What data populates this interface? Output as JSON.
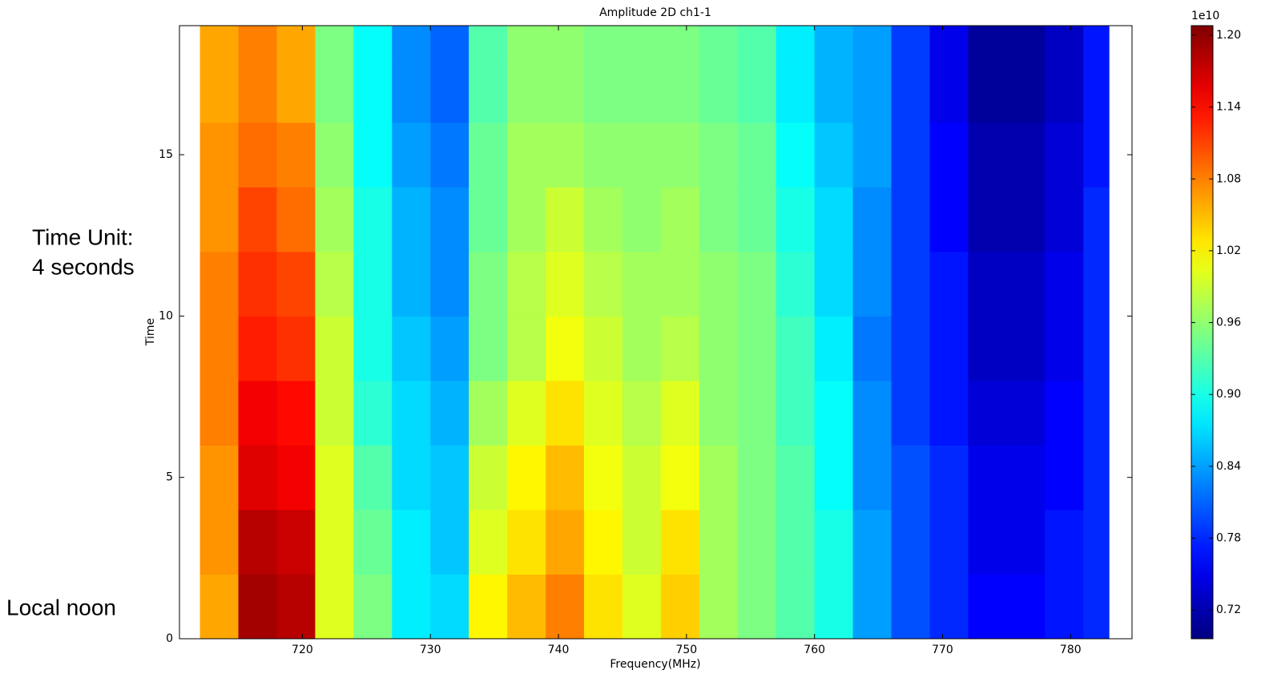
{
  "chart_data": {
    "type": "heatmap",
    "title": "Amplitude 2D ch1-1",
    "x_label": "Frequency(MHz)",
    "y_label": "Time",
    "colorbar_offset": "1e10",
    "annotations": [
      "Time Unit:",
      "4 seconds",
      "Local noon"
    ],
    "colormap": "jet",
    "x_edges": [
      712,
      715,
      718,
      721,
      724,
      727,
      730,
      733,
      736,
      739,
      742,
      745,
      748,
      751,
      754,
      757,
      760,
      763,
      766,
      769,
      772,
      775,
      778,
      781,
      783
    ],
    "y_edges": [
      0,
      2,
      4,
      6,
      8,
      10,
      12,
      14,
      16,
      18,
      19
    ],
    "z": [
      [
        1.06,
        1.19,
        1.18,
        1.0,
        0.95,
        0.88,
        0.87,
        1.02,
        1.05,
        1.08,
        1.03,
        1.0,
        1.04,
        0.97,
        0.95,
        0.93,
        0.9,
        0.84,
        0.8,
        0.78,
        0.76,
        0.76,
        0.77,
        0.78
      ],
      [
        1.07,
        1.18,
        1.17,
        1.0,
        0.94,
        0.88,
        0.86,
        1.0,
        1.03,
        1.06,
        1.02,
        0.99,
        1.03,
        0.97,
        0.95,
        0.93,
        0.9,
        0.84,
        0.8,
        0.78,
        0.75,
        0.75,
        0.77,
        0.78
      ],
      [
        1.07,
        1.16,
        1.15,
        1.0,
        0.93,
        0.87,
        0.86,
        0.99,
        1.02,
        1.05,
        1.01,
        0.99,
        1.01,
        0.97,
        0.95,
        0.93,
        0.89,
        0.83,
        0.8,
        0.78,
        0.75,
        0.75,
        0.76,
        0.78
      ],
      [
        1.08,
        1.15,
        1.14,
        0.99,
        0.91,
        0.87,
        0.85,
        0.97,
        1.0,
        1.03,
        1.0,
        0.98,
        1.0,
        0.96,
        0.95,
        0.92,
        0.89,
        0.83,
        0.79,
        0.77,
        0.74,
        0.74,
        0.76,
        0.78
      ],
      [
        1.08,
        1.13,
        1.12,
        0.99,
        0.9,
        0.86,
        0.84,
        0.95,
        0.98,
        1.01,
        0.99,
        0.97,
        0.98,
        0.96,
        0.95,
        0.92,
        0.88,
        0.82,
        0.79,
        0.77,
        0.73,
        0.73,
        0.75,
        0.78
      ],
      [
        1.08,
        1.12,
        1.11,
        0.98,
        0.9,
        0.85,
        0.83,
        0.95,
        0.98,
        1.0,
        0.98,
        0.97,
        0.97,
        0.96,
        0.95,
        0.91,
        0.87,
        0.83,
        0.79,
        0.77,
        0.73,
        0.73,
        0.75,
        0.78
      ],
      [
        1.07,
        1.11,
        1.09,
        0.97,
        0.9,
        0.85,
        0.83,
        0.94,
        0.97,
        0.99,
        0.97,
        0.96,
        0.97,
        0.95,
        0.94,
        0.9,
        0.87,
        0.83,
        0.79,
        0.76,
        0.72,
        0.72,
        0.74,
        0.78
      ],
      [
        1.07,
        1.09,
        1.08,
        0.96,
        0.89,
        0.84,
        0.82,
        0.94,
        0.97,
        0.97,
        0.96,
        0.96,
        0.96,
        0.95,
        0.94,
        0.89,
        0.86,
        0.84,
        0.79,
        0.76,
        0.72,
        0.72,
        0.74,
        0.77
      ],
      [
        1.06,
        1.08,
        1.06,
        0.95,
        0.89,
        0.83,
        0.81,
        0.93,
        0.96,
        0.96,
        0.95,
        0.95,
        0.95,
        0.94,
        0.93,
        0.88,
        0.85,
        0.84,
        0.79,
        0.75,
        0.71,
        0.71,
        0.73,
        0.77
      ],
      [
        1.06,
        1.08,
        1.06,
        0.95,
        0.89,
        0.83,
        0.81,
        0.93,
        0.96,
        0.96,
        0.95,
        0.95,
        0.95,
        0.94,
        0.93,
        0.88,
        0.85,
        0.84,
        0.79,
        0.75,
        0.71,
        0.71,
        0.73,
        0.77
      ]
    ],
    "xlim": [
      710.4,
      784.8
    ],
    "ylim": [
      0,
      19
    ],
    "xticks": [
      720,
      730,
      740,
      750,
      760,
      770,
      780
    ],
    "yticks": [
      0,
      5,
      10,
      15
    ],
    "clim": [
      0.696,
      1.208
    ],
    "cticks": [
      0.72,
      0.78,
      0.84,
      {
        "value": 0.9,
        "label": "0.90"
      },
      0.96,
      1.02,
      1.08,
      1.14,
      {
        "value": 1.2,
        "label": "1.20"
      }
    ]
  }
}
